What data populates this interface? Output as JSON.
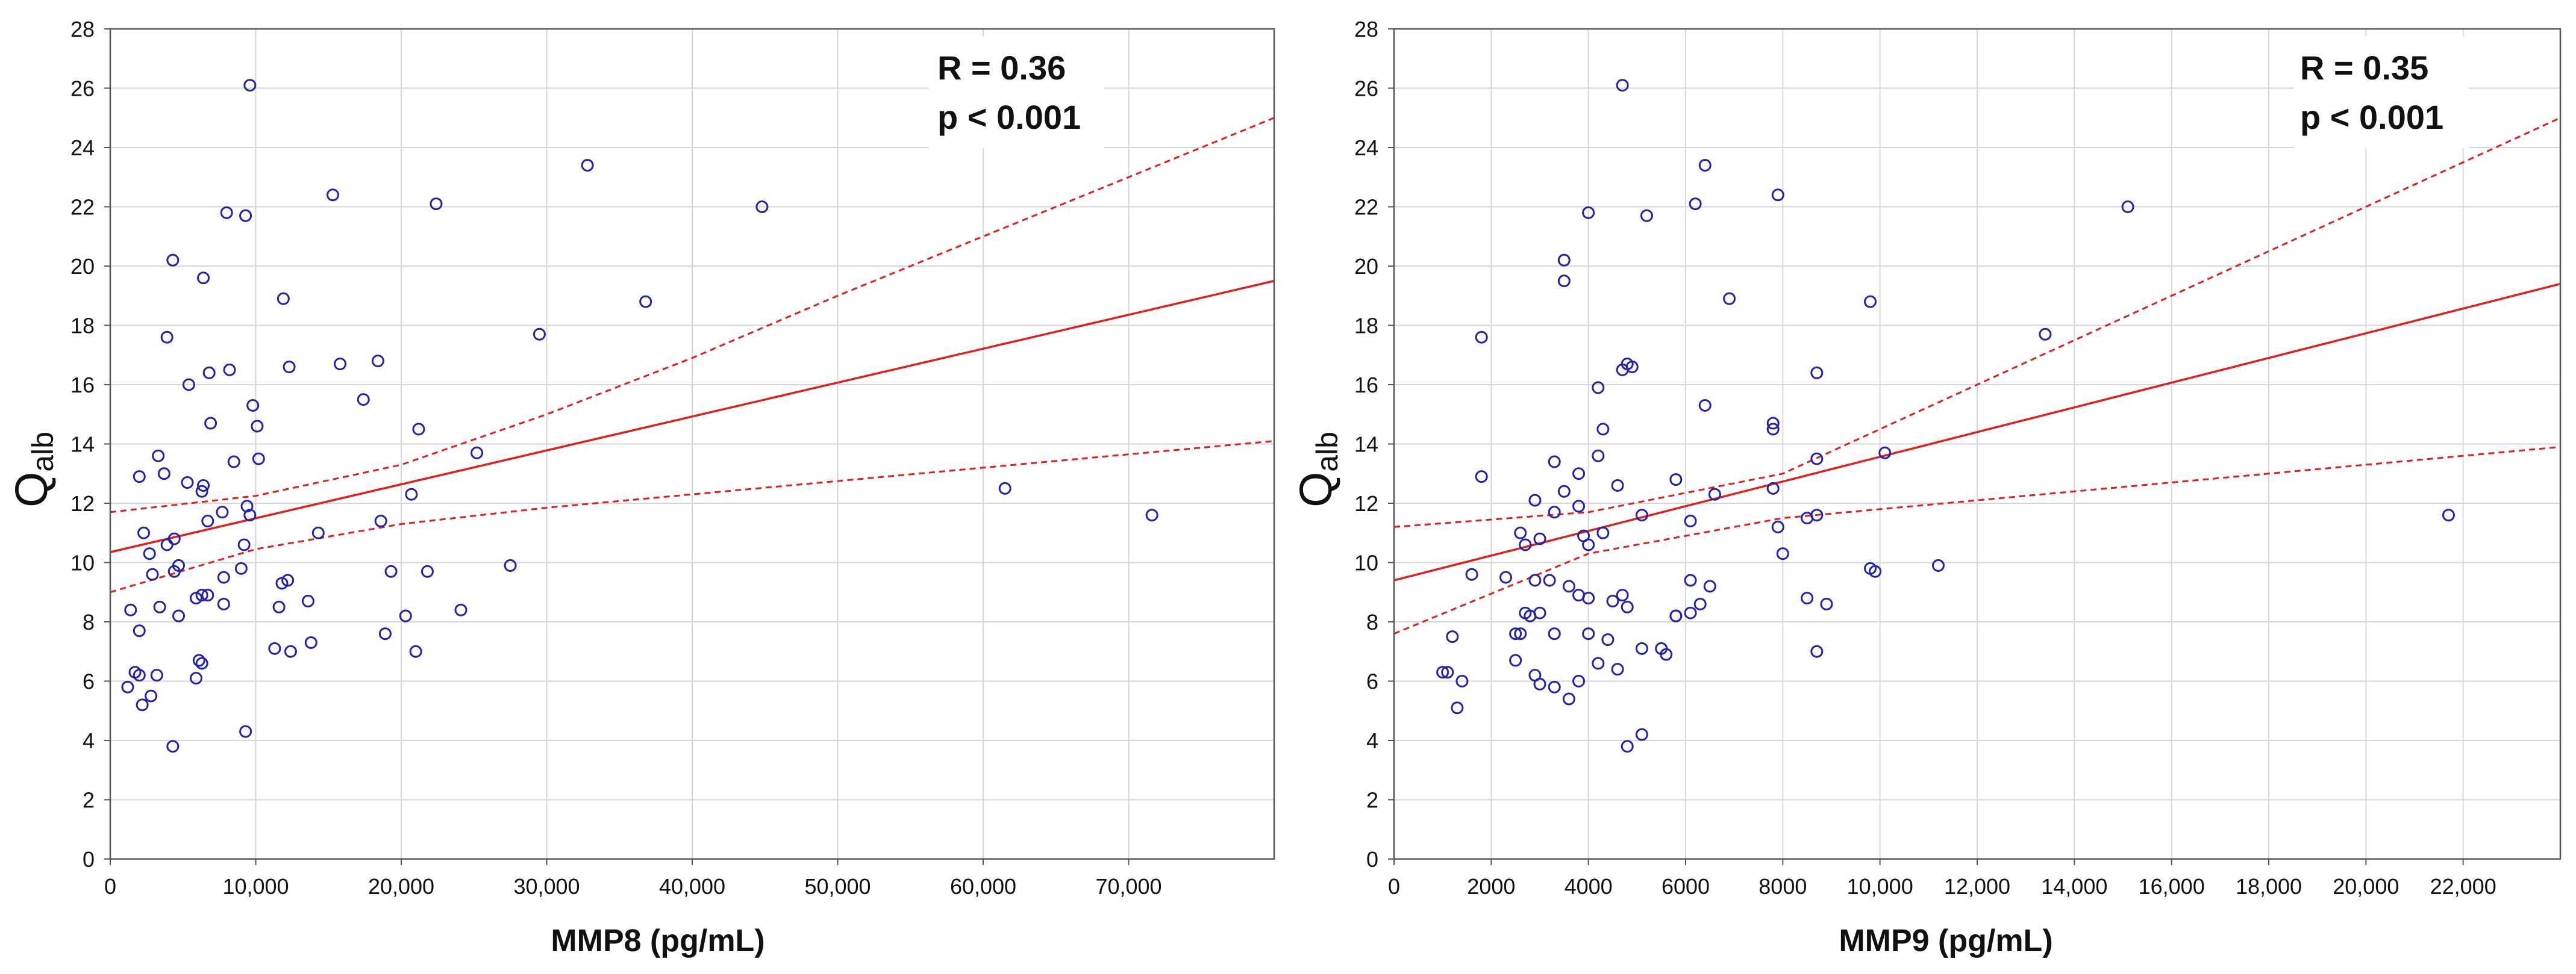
{
  "chart_data": [
    {
      "type": "scatter",
      "id": "left",
      "xlabel": "MMP8 (pg/mL)",
      "ylabel_main": "Q",
      "ylabel_sub": "alb",
      "xlim": [
        0,
        80000
      ],
      "ylim": [
        0,
        28
      ],
      "xticks": [
        0,
        10000,
        20000,
        30000,
        40000,
        50000,
        60000,
        70000
      ],
      "xtick_labels": [
        "0",
        "10,000",
        "20,000",
        "30,000",
        "40,000",
        "50,000",
        "60,000",
        "70,000"
      ],
      "yticks": [
        0,
        2,
        4,
        6,
        8,
        10,
        12,
        14,
        16,
        18,
        20,
        22,
        24,
        26,
        28
      ],
      "ytick_labels": [
        "0",
        "2",
        "4",
        "6",
        "8",
        "10",
        "12",
        "14",
        "16",
        "18",
        "20",
        "22",
        "24",
        "26",
        "28"
      ],
      "grid": true,
      "stats": {
        "r_text": "R = 0.36",
        "p_text": "p < 0.001"
      },
      "regression": {
        "x": [
          0,
          80000
        ],
        "y": [
          10.35,
          19.5
        ]
      },
      "ci_upper": {
        "x": [
          0,
          10000,
          20000,
          30000,
          40000,
          50000,
          60000,
          70000,
          80000
        ],
        "y": [
          11.7,
          12.25,
          13.3,
          15.0,
          16.9,
          19.0,
          21.0,
          23.0,
          25.0
        ]
      },
      "ci_lower": {
        "x": [
          0,
          10000,
          20000,
          30000,
          40000,
          50000,
          60000,
          70000,
          80000
        ],
        "y": [
          9.0,
          10.45,
          11.3,
          11.85,
          12.3,
          12.75,
          13.2,
          13.65,
          14.1
        ]
      },
      "colors": {
        "points": "#2222aa",
        "line": "#e02020",
        "grid": "#d6d6d6"
      },
      "points": {
        "x": [
          9600,
          32800,
          15300,
          22400,
          44800,
          8000,
          9300,
          4300,
          11900,
          6400,
          36800,
          3900,
          29500,
          15800,
          18400,
          12300,
          6800,
          8200,
          17400,
          5400,
          9800,
          21200,
          10100,
          6900,
          25200,
          10200,
          3300,
          8500,
          2000,
          3700,
          6400,
          6300,
          5300,
          9400,
          20700,
          18600,
          14300,
          7700,
          6700,
          9600,
          9200,
          2300,
          4400,
          3900,
          2700,
          4700,
          27500,
          21800,
          19300,
          7800,
          9000,
          2900,
          4400,
          12200,
          11800,
          6700,
          1400,
          5900,
          6300,
          7800,
          13600,
          24100,
          11600,
          20300,
          4700,
          3400,
          2000,
          18900,
          11300,
          12400,
          13800,
          21000,
          6300,
          6100,
          1700,
          2000,
          3200,
          5900,
          1200,
          2800,
          2200,
          9300,
          4300,
          61500,
          71600
        ],
        "y": [
          26.1,
          23.4,
          22.4,
          22.1,
          22.0,
          21.8,
          21.7,
          20.2,
          18.9,
          19.6,
          18.8,
          17.6,
          17.7,
          16.7,
          16.8,
          16.6,
          16.4,
          16.5,
          15.5,
          16.0,
          15.3,
          14.5,
          14.6,
          14.7,
          13.7,
          13.5,
          13.6,
          13.4,
          12.9,
          13.0,
          12.6,
          12.4,
          12.7,
          11.9,
          12.3,
          11.4,
          11.0,
          11.7,
          11.4,
          11.6,
          10.6,
          11.0,
          10.8,
          10.6,
          10.3,
          9.9,
          9.9,
          9.7,
          9.7,
          9.5,
          9.8,
          9.6,
          9.7,
          9.4,
          9.3,
          8.9,
          8.4,
          8.8,
          8.9,
          8.6,
          8.7,
          8.4,
          8.5,
          8.2,
          8.2,
          8.5,
          7.7,
          7.6,
          7.1,
          7.0,
          7.3,
          7.0,
          6.6,
          6.7,
          6.3,
          6.2,
          6.2,
          6.1,
          5.8,
          5.5,
          5.2,
          4.3,
          3.8,
          12.5,
          11.6
        ]
      }
    },
    {
      "type": "scatter",
      "id": "right",
      "xlabel": "MMP9 (pg/mL)",
      "ylabel_main": "Q",
      "ylabel_sub": "alb",
      "xlim": [
        0,
        24000
      ],
      "ylim": [
        0,
        28
      ],
      "xticks": [
        0,
        2000,
        4000,
        6000,
        8000,
        10000,
        12000,
        14000,
        16000,
        18000,
        20000,
        22000
      ],
      "xtick_labels": [
        "0",
        "2000",
        "4000",
        "6000",
        "8000",
        "10,000",
        "12,000",
        "14,000",
        "16,000",
        "18,000",
        "20,000",
        "22,000"
      ],
      "yticks": [
        0,
        2,
        4,
        6,
        8,
        10,
        12,
        14,
        16,
        18,
        20,
        22,
        24,
        26,
        28
      ],
      "ytick_labels": [
        "0",
        "2",
        "4",
        "6",
        "8",
        "10",
        "12",
        "14",
        "16",
        "18",
        "20",
        "22",
        "24",
        "26",
        "28"
      ],
      "grid": true,
      "stats": {
        "r_text": "R = 0.35",
        "p_text": "p < 0.001"
      },
      "regression": {
        "x": [
          0,
          24000
        ],
        "y": [
          9.4,
          19.4
        ]
      },
      "ci_upper": {
        "x": [
          0,
          4000,
          8000,
          12000,
          16000,
          20000,
          24000
        ],
        "y": [
          11.2,
          11.7,
          13.0,
          16.0,
          19.0,
          22.0,
          25.0
        ]
      },
      "ci_lower": {
        "x": [
          0,
          4000,
          8000,
          12000,
          16000,
          20000,
          24000
        ],
        "y": [
          7.6,
          10.3,
          11.5,
          12.1,
          12.7,
          13.3,
          13.9
        ]
      },
      "colors": {
        "points": "#2222aa",
        "line": "#e02020",
        "grid": "#d6d6d6"
      },
      "points": {
        "x": [
          4700,
          6400,
          6200,
          7900,
          15100,
          4000,
          5200,
          3500,
          3500,
          1800,
          6900,
          9800,
          13400,
          4800,
          4700,
          8700,
          4900,
          4200,
          6400,
          4300,
          7800,
          7800,
          10100,
          3300,
          8700,
          4200,
          1800,
          5800,
          4600,
          3800,
          3500,
          7800,
          6600,
          2900,
          8700,
          8500,
          3300,
          6100,
          5100,
          3800,
          4300,
          2600,
          3900,
          3000,
          7900,
          4000,
          2700,
          8000,
          11200,
          9800,
          9900,
          2300,
          1600,
          2900,
          3200,
          3600,
          6100,
          6500,
          4700,
          4000,
          8500,
          6300,
          8900,
          4800,
          3800,
          4500,
          6100,
          3000,
          5800,
          5800,
          2700,
          2800,
          3300,
          4400,
          1200,
          4000,
          2500,
          5500,
          2600,
          5100,
          4200,
          3800,
          2900,
          8700,
          1000,
          5600,
          4600,
          3000,
          3300,
          2500,
          1400,
          3600,
          1100,
          1300,
          5100,
          4800,
          21700
        ],
        "y": [
          26.1,
          23.4,
          22.1,
          22.4,
          22.0,
          21.8,
          21.7,
          20.2,
          19.5,
          17.6,
          18.9,
          18.8,
          17.7,
          16.7,
          16.5,
          16.4,
          16.6,
          15.9,
          15.3,
          14.5,
          14.7,
          14.5,
          13.7,
          13.4,
          13.5,
          13.6,
          12.9,
          12.8,
          12.6,
          13.0,
          12.4,
          12.5,
          12.3,
          12.1,
          11.6,
          11.5,
          11.7,
          11.4,
          11.6,
          11.9,
          11.0,
          11.0,
          10.9,
          10.8,
          11.2,
          10.6,
          10.6,
          10.3,
          9.9,
          9.8,
          9.7,
          9.5,
          9.6,
          9.4,
          9.4,
          9.2,
          9.4,
          9.2,
          8.9,
          8.8,
          8.8,
          8.6,
          8.6,
          8.5,
          8.9,
          8.7,
          8.3,
          8.3,
          8.2,
          8.2,
          8.3,
          8.2,
          7.6,
          7.4,
          7.5,
          7.6,
          7.6,
          7.1,
          7.6,
          7.1,
          6.6,
          6.0,
          6.2,
          7.0,
          6.3,
          6.9,
          6.4,
          5.9,
          5.8,
          6.7,
          6.0,
          5.4,
          6.3,
          5.1,
          4.2,
          3.8,
          11.6
        ]
      }
    }
  ]
}
